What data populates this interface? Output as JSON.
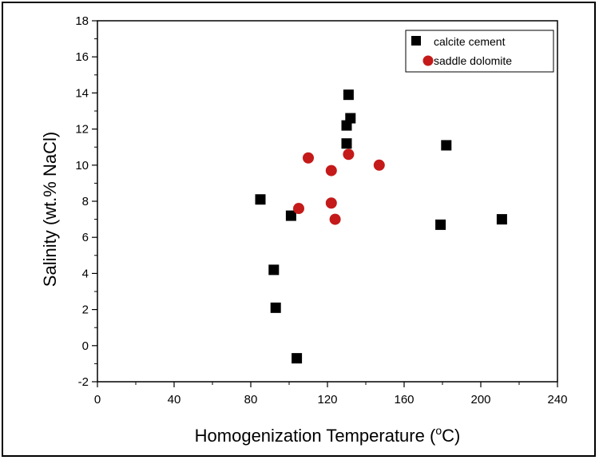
{
  "chart_data": {
    "type": "scatter",
    "xlabel": "Homogenization Temperature",
    "xlabel_unit_prefix": "(",
    "xlabel_unit_sup": "o",
    "xlabel_unit_suffix": "C)",
    "ylabel": "Salinity (wt.% NaCl)",
    "xlim": [
      0,
      240
    ],
    "ylim": [
      -2,
      18
    ],
    "xticks": [
      0,
      40,
      80,
      120,
      160,
      200,
      240
    ],
    "yticks": [
      -2,
      0,
      2,
      4,
      6,
      8,
      10,
      12,
      14,
      16,
      18
    ],
    "grid": false,
    "legend_position": "top-right",
    "series": [
      {
        "name": "calcite cement",
        "marker": "square",
        "color": "#000000",
        "points": [
          {
            "x": 85,
            "y": 8.1
          },
          {
            "x": 92,
            "y": 4.2
          },
          {
            "x": 93,
            "y": 2.1
          },
          {
            "x": 101,
            "y": 7.2
          },
          {
            "x": 104,
            "y": -0.7
          },
          {
            "x": 130,
            "y": 11.2
          },
          {
            "x": 130,
            "y": 12.2
          },
          {
            "x": 131,
            "y": 13.9
          },
          {
            "x": 132,
            "y": 12.6
          },
          {
            "x": 179,
            "y": 6.7
          },
          {
            "x": 182,
            "y": 11.1
          },
          {
            "x": 211,
            "y": 7.0
          }
        ]
      },
      {
        "name": "saddle dolomite",
        "marker": "circle",
        "color": "#c41a1a",
        "points": [
          {
            "x": 105,
            "y": 7.6
          },
          {
            "x": 110,
            "y": 10.4
          },
          {
            "x": 122,
            "y": 9.7
          },
          {
            "x": 122,
            "y": 7.9
          },
          {
            "x": 124,
            "y": 7.0
          },
          {
            "x": 131,
            "y": 10.6
          },
          {
            "x": 147,
            "y": 10.0
          }
        ]
      }
    ]
  }
}
